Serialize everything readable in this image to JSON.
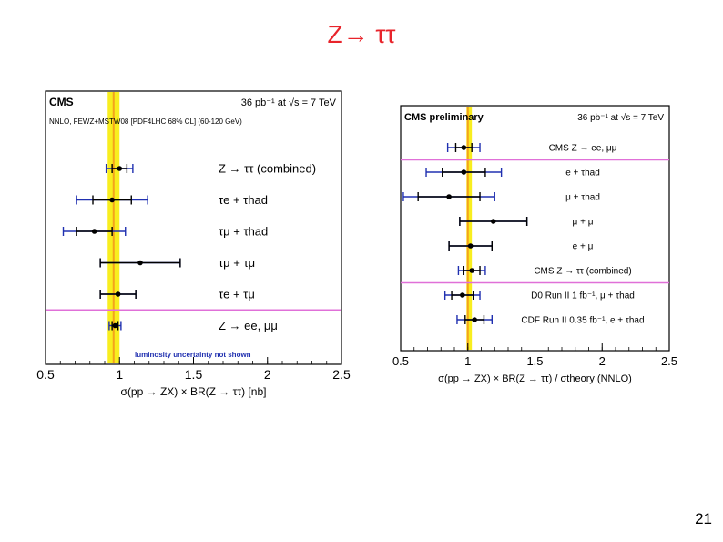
{
  "slide": {
    "title": "Z→ ττ",
    "page_number": "21"
  },
  "chart_data": [
    {
      "type": "scatter",
      "experiment_label": "CMS",
      "lumi_label": "36 pb⁻¹ at √s = 7 TeV",
      "theory_label": "NNLO, FEWZ+MSTW08 [PDF4LHC 68% CL] (60-120 GeV)",
      "xlabel": "σ(pp → ZX) × BR(Z → ττ)  [nb]",
      "xlim": [
        0.5,
        2.5
      ],
      "x_ticks": [
        "0.5",
        "1",
        "1.5",
        "2",
        "2.5"
      ],
      "theory_band": [
        0.92,
        1.0
      ],
      "theory_central": 0.96,
      "points": [
        {
          "label": "Z → ττ   (combined)",
          "value": 1.0,
          "stat": 0.05,
          "total": 0.09
        },
        {
          "label": "τe + τhad",
          "value": 0.95,
          "stat": 0.13,
          "total": 0.24
        },
        {
          "label": "τμ + τhad",
          "value": 0.83,
          "stat": 0.12,
          "total": 0.21
        },
        {
          "label": "τμ + τμ",
          "value": 1.14,
          "stat": 0.27,
          "total": 0.27
        },
        {
          "label": "τe + τμ",
          "value": 0.99,
          "stat": 0.12,
          "total": 0.12
        },
        {
          "label": "Z → ee, μμ",
          "value": 0.97,
          "stat": 0.02,
          "total": 0.04
        }
      ],
      "note": "luminosity uncertainty not shown"
    },
    {
      "type": "scatter",
      "experiment_label": "CMS preliminary",
      "lumi_label": "36 pb⁻¹ at √s = 7 TeV",
      "xlabel": "σ(pp → ZX) × BR(Z → ττ) / σtheory (NNLO)",
      "xlim": [
        0.5,
        2.5
      ],
      "x_ticks": [
        "0.5",
        "1",
        "1.5",
        "2",
        "2.5"
      ],
      "theory_band": [
        0.99,
        1.03
      ],
      "theory_central": 1.0,
      "points": [
        {
          "label": "CMS Z → ee, μμ",
          "value": 0.97,
          "stat": 0.06,
          "total": 0.12
        },
        {
          "label": "e + τhad",
          "value": 0.97,
          "stat": 0.16,
          "total": 0.28
        },
        {
          "label": "μ + τhad",
          "value": 0.86,
          "stat": 0.23,
          "total": 0.34
        },
        {
          "label": "μ + μ",
          "value": 1.19,
          "stat": 0.25,
          "total": 0.25
        },
        {
          "label": "e + μ",
          "value": 1.02,
          "stat": 0.16,
          "total": 0.16
        },
        {
          "label": "CMS Z → ττ   (combined)",
          "value": 1.03,
          "stat": 0.06,
          "total": 0.1
        },
        {
          "label": "D0 Run II 1 fb⁻¹, μ + τhad",
          "value": 0.96,
          "stat": 0.08,
          "total": 0.13
        },
        {
          "label": "CDF Run II 0.35 fb⁻¹, e + τhad",
          "value": 1.05,
          "stat": 0.07,
          "total": 0.13
        }
      ],
      "separator_after": [
        0,
        5
      ]
    }
  ]
}
